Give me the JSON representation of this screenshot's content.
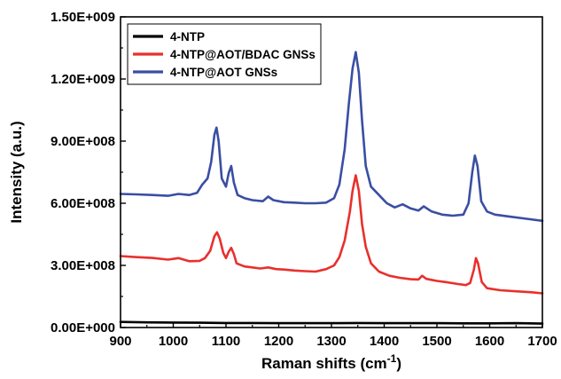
{
  "chart_data": {
    "type": "line",
    "title": "",
    "xlabel": "Raman shifts (cm",
    "xlabel_sup": "-1",
    "xlabel_suffix": ")",
    "ylabel": "Intensity (a.u.)",
    "xlim": [
      900,
      1700
    ],
    "ylim": [
      0,
      1500000000
    ],
    "xticks": [
      900,
      1000,
      1100,
      1200,
      1300,
      1400,
      1500,
      1600,
      1700
    ],
    "xtick_labels": [
      "900",
      "1000",
      "1100",
      "1200",
      "1300",
      "1400",
      "1500",
      "1600",
      "1700"
    ],
    "yticks": [
      0,
      300000000,
      600000000,
      900000000,
      1200000000,
      1500000000
    ],
    "ytick_labels": [
      "0.00E+000",
      "3.00E+008",
      "6.00E+008",
      "9.00E+008",
      "1.20E+009",
      "1.50E+009"
    ],
    "legend_position": "top-left",
    "grid": false,
    "series": [
      {
        "name": "4-NTP",
        "color": "#000000",
        "x": [
          900,
          950,
          1000,
          1050,
          1100,
          1150,
          1200,
          1250,
          1300,
          1350,
          1400,
          1450,
          1500,
          1550,
          1600,
          1650,
          1700
        ],
        "y": [
          27000000,
          25000000,
          24000000,
          23000000,
          22000000,
          22000000,
          21000000,
          21000000,
          21000000,
          22000000,
          21000000,
          21000000,
          21000000,
          20000000,
          20000000,
          21000000,
          19000000
        ]
      },
      {
        "name": "4-NTP@AOT/BDAC GNSs",
        "color": "#e8302c",
        "x": [
          900,
          930,
          960,
          990,
          1010,
          1030,
          1050,
          1060,
          1070,
          1078,
          1083,
          1088,
          1095,
          1100,
          1105,
          1110,
          1115,
          1120,
          1135,
          1150,
          1165,
          1180,
          1195,
          1210,
          1230,
          1250,
          1270,
          1290,
          1305,
          1315,
          1325,
          1335,
          1340,
          1346,
          1352,
          1358,
          1365,
          1375,
          1390,
          1410,
          1430,
          1450,
          1465,
          1472,
          1480,
          1500,
          1520,
          1540,
          1555,
          1563,
          1570,
          1574,
          1578,
          1585,
          1595,
          1620,
          1650,
          1680,
          1700
        ],
        "y": [
          345000000,
          340000000,
          336000000,
          328000000,
          335000000,
          320000000,
          322000000,
          335000000,
          370000000,
          440000000,
          460000000,
          430000000,
          360000000,
          335000000,
          365000000,
          385000000,
          355000000,
          310000000,
          295000000,
          290000000,
          285000000,
          290000000,
          282000000,
          280000000,
          275000000,
          272000000,
          270000000,
          282000000,
          300000000,
          340000000,
          420000000,
          560000000,
          660000000,
          735000000,
          660000000,
          500000000,
          390000000,
          310000000,
          270000000,
          250000000,
          240000000,
          233000000,
          232000000,
          250000000,
          235000000,
          225000000,
          218000000,
          210000000,
          205000000,
          215000000,
          280000000,
          335000000,
          310000000,
          220000000,
          190000000,
          180000000,
          175000000,
          170000000,
          165000000
        ]
      },
      {
        "name": "4-NTP@AOT GNSs",
        "color": "#3a4ea3",
        "x": [
          900,
          930,
          960,
          990,
          1010,
          1030,
          1045,
          1055,
          1065,
          1072,
          1078,
          1082,
          1086,
          1092,
          1100,
          1105,
          1110,
          1115,
          1122,
          1135,
          1150,
          1170,
          1180,
          1190,
          1210,
          1230,
          1250,
          1270,
          1290,
          1305,
          1315,
          1325,
          1333,
          1340,
          1346,
          1352,
          1358,
          1365,
          1375,
          1390,
          1405,
          1420,
          1435,
          1450,
          1465,
          1475,
          1490,
          1510,
          1530,
          1550,
          1560,
          1567,
          1572,
          1577,
          1584,
          1595,
          1610,
          1640,
          1670,
          1700
        ],
        "y": [
          645000000,
          643000000,
          640000000,
          636000000,
          645000000,
          640000000,
          650000000,
          690000000,
          720000000,
          800000000,
          930000000,
          965000000,
          900000000,
          720000000,
          680000000,
          745000000,
          780000000,
          700000000,
          640000000,
          625000000,
          615000000,
          610000000,
          632000000,
          615000000,
          605000000,
          603000000,
          600000000,
          600000000,
          603000000,
          625000000,
          690000000,
          860000000,
          1080000000,
          1250000000,
          1330000000,
          1230000000,
          1000000000,
          780000000,
          680000000,
          640000000,
          600000000,
          580000000,
          595000000,
          575000000,
          565000000,
          585000000,
          560000000,
          545000000,
          540000000,
          545000000,
          600000000,
          750000000,
          830000000,
          780000000,
          610000000,
          560000000,
          545000000,
          535000000,
          525000000,
          515000000
        ]
      }
    ]
  }
}
